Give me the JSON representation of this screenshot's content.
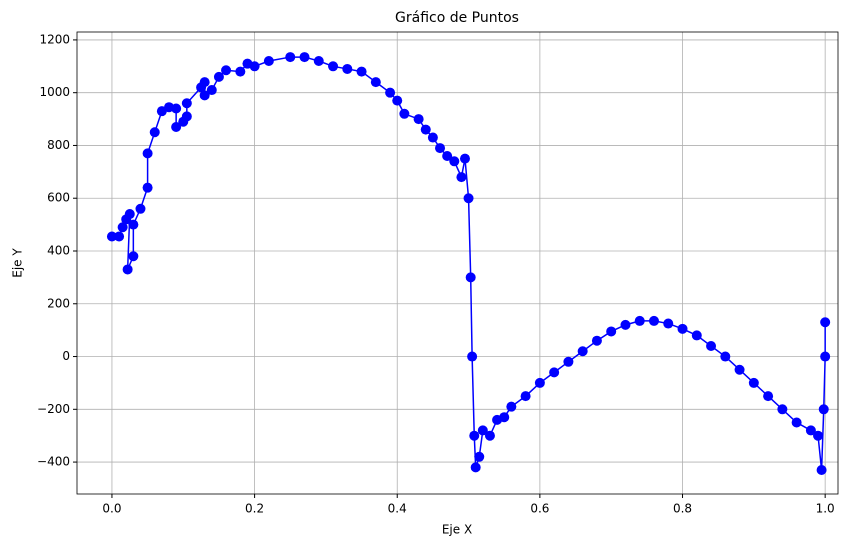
{
  "chart_data": {
    "type": "line",
    "title": "Gráfico de Puntos",
    "x_label": "Eje X",
    "y_label": "Eje Y",
    "x": [
      0.0,
      0.01,
      0.015,
      0.02,
      0.025,
      0.022,
      0.03,
      0.03,
      0.04,
      0.05,
      0.05,
      0.06,
      0.07,
      0.08,
      0.09,
      0.09,
      0.1,
      0.105,
      0.105,
      0.125,
      0.13,
      0.13,
      0.14,
      0.15,
      0.16,
      0.18,
      0.19,
      0.2,
      0.22,
      0.25,
      0.27,
      0.29,
      0.31,
      0.33,
      0.35,
      0.37,
      0.39,
      0.4,
      0.41,
      0.43,
      0.44,
      0.45,
      0.46,
      0.47,
      0.48,
      0.49,
      0.495,
      0.5,
      0.503,
      0.505,
      0.508,
      0.51,
      0.515,
      0.52,
      0.53,
      0.54,
      0.55,
      0.56,
      0.58,
      0.6,
      0.62,
      0.64,
      0.66,
      0.68,
      0.7,
      0.72,
      0.74,
      0.76,
      0.78,
      0.8,
      0.82,
      0.84,
      0.86,
      0.88,
      0.9,
      0.92,
      0.94,
      0.96,
      0.98,
      0.99,
      0.995,
      0.998,
      1.0,
      1.0
    ],
    "series": [
      {
        "color": "#0000ff",
        "values": [
          455,
          455,
          490,
          520,
          540,
          330,
          380,
          500,
          560,
          640,
          770,
          850,
          930,
          945,
          940,
          870,
          890,
          910,
          960,
          1020,
          1040,
          990,
          1010,
          1060,
          1085,
          1080,
          1110,
          1100,
          1120,
          1135,
          1135,
          1120,
          1100,
          1090,
          1080,
          1040,
          1000,
          970,
          920,
          900,
          860,
          830,
          790,
          760,
          740,
          680,
          750,
          600,
          300,
          0,
          -300,
          -420,
          -380,
          -280,
          -300,
          -240,
          -230,
          -190,
          -150,
          -100,
          -60,
          -20,
          20,
          60,
          95,
          120,
          135,
          135,
          125,
          105,
          80,
          40,
          0,
          -50,
          -100,
          -150,
          -200,
          -250,
          -280,
          -300,
          -430,
          -200,
          0,
          130
        ]
      }
    ],
    "xlim": [
      -0.049,
      1.018
    ],
    "ylim": [
      -521,
      1230
    ],
    "xticks": [
      {
        "value": 0,
        "label": "0.0"
      },
      0.2,
      0.4,
      0.6,
      0.8,
      {
        "value": 1,
        "label": "1.0"
      }
    ],
    "yticks": [
      {
        "value": -400,
        "label": "−400"
      },
      {
        "value": -200,
        "label": "−200"
      },
      0,
      200,
      400,
      600,
      800,
      1000,
      1200
    ],
    "grid": true
  }
}
